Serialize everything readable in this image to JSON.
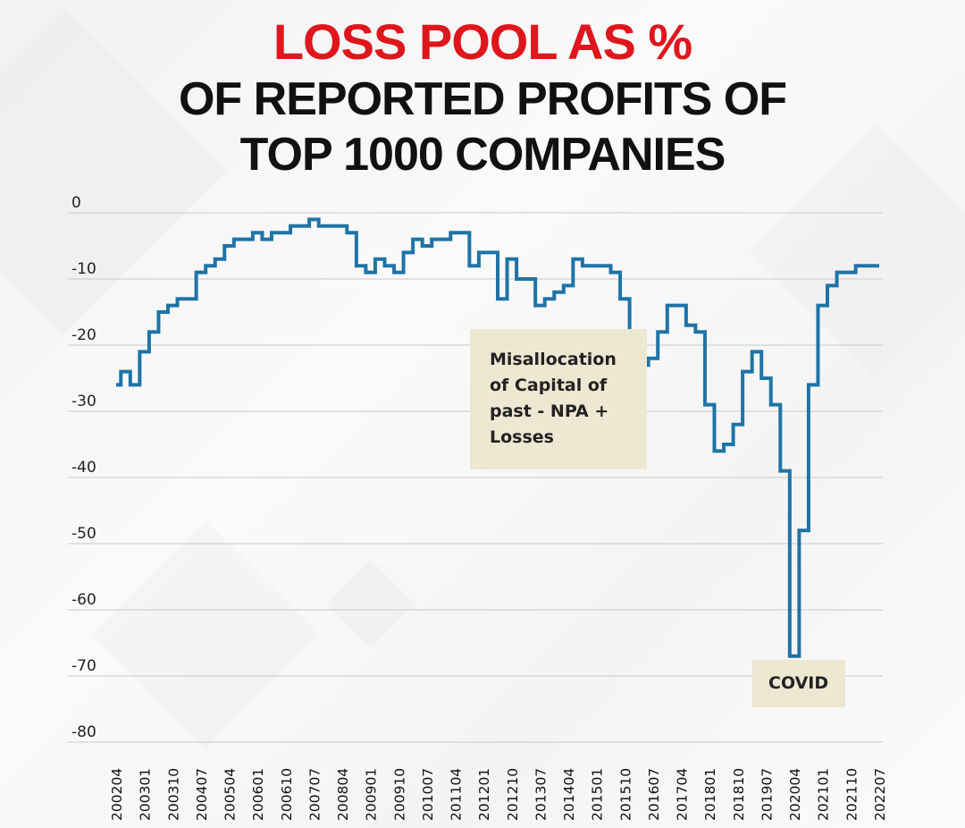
{
  "title": {
    "line1": "LOSS POOL AS %",
    "line2": "OF REPORTED PROFITS OF",
    "line3": "TOP 1000 COMPANIES"
  },
  "annotations": {
    "npa": "Misallocation of Capital of past - NPA + Losses",
    "covid": "COVID"
  },
  "colors": {
    "line": "#1f74a6",
    "title_accent": "#e0161d",
    "annotation_bg": "#ede8d2"
  },
  "chart_data": {
    "type": "line",
    "title": "LOSS POOL AS % OF REPORTED PROFITS OF TOP 1000 COMPANIES",
    "xlabel": "",
    "ylabel": "",
    "ylim": [
      -80,
      0
    ],
    "yticks": [
      0,
      -10,
      -20,
      -30,
      -40,
      -50,
      -60,
      -70,
      -80
    ],
    "grid": true,
    "x_tick_labels": [
      "200204",
      "200301",
      "200310",
      "200407",
      "200504",
      "200601",
      "200610",
      "200707",
      "200804",
      "200901",
      "200910",
      "201007",
      "201104",
      "201201",
      "201210",
      "201307",
      "201404",
      "201501",
      "201510",
      "201607",
      "201704",
      "201801",
      "201810",
      "201907",
      "202004",
      "202101",
      "202110",
      "202207"
    ],
    "series": [
      {
        "x": [
          "200204",
          "200207",
          "200210",
          "200301",
          "200304",
          "200307",
          "200310",
          "200401",
          "200404",
          "200407",
          "200410",
          "200501",
          "200504",
          "200507",
          "200510",
          "200601",
          "200604",
          "200607",
          "200610",
          "200701",
          "200704",
          "200707",
          "200710",
          "200801",
          "200804",
          "200807",
          "200810",
          "200901",
          "200904",
          "200907",
          "200910",
          "201001",
          "201004",
          "201007",
          "201010",
          "201101",
          "201104",
          "201107",
          "201110",
          "201201",
          "201204",
          "201207",
          "201210",
          "201301",
          "201304",
          "201307",
          "201310",
          "201401",
          "201404",
          "201407",
          "201410",
          "201501",
          "201504",
          "201507",
          "201510",
          "201601",
          "201604",
          "201607",
          "201610",
          "201701",
          "201704",
          "201707",
          "201710",
          "201801",
          "201804",
          "201807",
          "201810",
          "201901",
          "201904",
          "201907",
          "201910",
          "202001",
          "202004",
          "202007",
          "202010",
          "202101",
          "202104",
          "202107",
          "202110",
          "202201",
          "202204",
          "202207"
        ],
        "y": [
          -26,
          -24,
          -26,
          -21,
          -18,
          -15,
          -14,
          -13,
          -13,
          -9,
          -8,
          -7,
          -5,
          -4,
          -4,
          -3,
          -4,
          -3,
          -3,
          -2,
          -2,
          -1,
          -2,
          -2,
          -2,
          -3,
          -8,
          -9,
          -7,
          -8,
          -9,
          -6,
          -4,
          -5,
          -4,
          -4,
          -3,
          -3,
          -8,
          -6,
          -6,
          -13,
          -7,
          -10,
          -10,
          -14,
          -13,
          -12,
          -11,
          -7,
          -8,
          -8,
          -8,
          -9,
          -13,
          -20,
          -23,
          -22,
          -18,
          -14,
          -14,
          -17,
          -18,
          -29,
          -36,
          -35,
          -32,
          -24,
          -21,
          -25,
          -29,
          -39,
          -67,
          -48,
          -26,
          -14,
          -11,
          -9,
          -9,
          -8,
          -8,
          -8
        ]
      }
    ],
    "annotations": [
      "Misallocation of Capital of past - NPA + Losses",
      "COVID"
    ]
  }
}
